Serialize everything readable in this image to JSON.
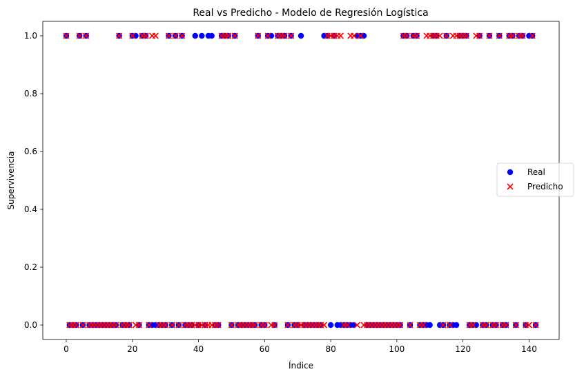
{
  "chart_data": {
    "type": "scatter",
    "title": "Real vs Predicho - Modelo de Regresión Logística",
    "xlabel": "Índice",
    "ylabel": "Supervivencia",
    "xlim": [
      -7.1,
      149.1
    ],
    "ylim": [
      -0.05,
      1.05
    ],
    "xticks": [
      0,
      20,
      40,
      60,
      80,
      100,
      120,
      140
    ],
    "yticks": [
      0.0,
      0.2,
      0.4,
      0.6,
      0.8,
      1.0
    ],
    "xtick_labels": [
      "0",
      "20",
      "40",
      "60",
      "80",
      "100",
      "120",
      "140"
    ],
    "ytick_labels": [
      "0.0",
      "0.2",
      "0.4",
      "0.6",
      "0.8",
      "1.0"
    ],
    "grid": false,
    "legend_position": "center-right",
    "series": [
      {
        "name": "Real",
        "marker": "circle",
        "color": "#0000ff",
        "ones": [
          0,
          4,
          6,
          16,
          20,
          21,
          23,
          24,
          31,
          33,
          35,
          39,
          41,
          43,
          44,
          47,
          48,
          49,
          51,
          58,
          61,
          62,
          64,
          65,
          66,
          68,
          71,
          78,
          79,
          81,
          88,
          89,
          90,
          102,
          103,
          105,
          106,
          111,
          112,
          115,
          119,
          120,
          121,
          125,
          128,
          131,
          134,
          135,
          137,
          138,
          140,
          141
        ],
        "zeros": [
          1,
          2,
          3,
          5,
          7,
          8,
          9,
          10,
          11,
          12,
          13,
          14,
          15,
          17,
          18,
          19,
          22,
          25,
          26,
          27,
          28,
          29,
          30,
          32,
          34,
          36,
          37,
          38,
          40,
          42,
          45,
          46,
          50,
          52,
          53,
          54,
          55,
          56,
          57,
          59,
          60,
          63,
          67,
          69,
          70,
          72,
          73,
          74,
          75,
          76,
          77,
          80,
          82,
          83,
          84,
          85,
          86,
          87,
          91,
          92,
          93,
          94,
          95,
          96,
          97,
          98,
          99,
          100,
          101,
          104,
          107,
          108,
          109,
          110,
          113,
          114,
          116,
          117,
          118,
          122,
          123,
          124,
          126,
          127,
          129,
          130,
          132,
          133,
          136,
          139,
          142
        ]
      },
      {
        "name": "Predicho",
        "marker": "x",
        "color": "#ff0000",
        "ones": [
          0,
          4,
          6,
          16,
          20,
          23,
          24,
          26,
          27,
          31,
          33,
          35,
          47,
          48,
          49,
          51,
          58,
          61,
          64,
          65,
          66,
          68,
          79,
          80,
          81,
          82,
          83,
          86,
          87,
          89,
          102,
          103,
          105,
          106,
          109,
          110,
          111,
          112,
          113,
          115,
          117,
          118,
          119,
          120,
          121,
          124,
          125,
          128,
          131,
          134,
          135,
          137,
          138,
          141
        ],
        "zeros": [
          1,
          2,
          3,
          5,
          7,
          8,
          9,
          10,
          11,
          12,
          13,
          14,
          15,
          17,
          18,
          19,
          21,
          22,
          25,
          28,
          29,
          30,
          32,
          34,
          36,
          37,
          38,
          39,
          40,
          41,
          42,
          43,
          44,
          45,
          46,
          50,
          52,
          53,
          54,
          55,
          56,
          57,
          59,
          60,
          62,
          63,
          67,
          69,
          70,
          71,
          72,
          73,
          74,
          75,
          76,
          77,
          78,
          84,
          85,
          88,
          90,
          91,
          92,
          93,
          94,
          95,
          96,
          97,
          98,
          99,
          100,
          101,
          104,
          107,
          108,
          114,
          116,
          122,
          123,
          126,
          127,
          129,
          130,
          132,
          133,
          136,
          139,
          140,
          142
        ]
      }
    ]
  }
}
